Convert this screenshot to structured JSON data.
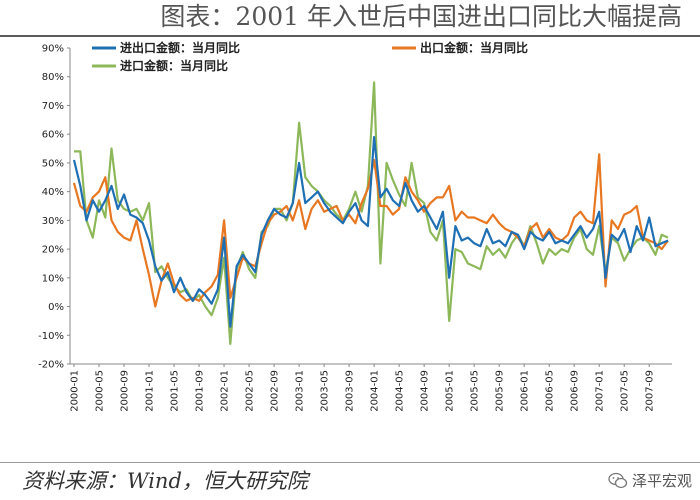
{
  "header": {
    "title": "图表：2001 年入世后中国进出口同比大幅提高"
  },
  "footer": {
    "source": "资料来源：Wind，恒大研究院",
    "watermark": "泽平宏观"
  },
  "colors": {
    "total": "#1f6fb4",
    "export": "#e87722",
    "import": "#8db85a"
  },
  "chart_data": {
    "type": "line",
    "ylim": [
      -0.2,
      0.9
    ],
    "yticks": [
      "-20%",
      "-10%",
      "0%",
      "10%",
      "20%",
      "30%",
      "40%",
      "50%",
      "60%",
      "70%",
      "80%",
      "90%"
    ],
    "xticks": [
      "2000-01",
      "2000-05",
      "2000-09",
      "2001-01",
      "2001-05",
      "2001-09",
      "2002-01",
      "2002-05",
      "2002-09",
      "2003-01",
      "2003-05",
      "2003-09",
      "2004-01",
      "2004-05",
      "2004-09",
      "2005-01",
      "2005-05",
      "2005-09",
      "2006-01",
      "2006-05",
      "2006-09",
      "2007-01",
      "2007-05",
      "2007-09"
    ],
    "x": [
      "2000-01",
      "2000-02",
      "2000-03",
      "2000-04",
      "2000-05",
      "2000-06",
      "2000-07",
      "2000-08",
      "2000-09",
      "2000-10",
      "2000-11",
      "2000-12",
      "2001-01",
      "2001-02",
      "2001-03",
      "2001-04",
      "2001-05",
      "2001-06",
      "2001-07",
      "2001-08",
      "2001-09",
      "2001-10",
      "2001-11",
      "2001-12",
      "2002-01",
      "2002-02",
      "2002-03",
      "2002-04",
      "2002-05",
      "2002-06",
      "2002-07",
      "2002-08",
      "2002-09",
      "2002-10",
      "2002-11",
      "2002-12",
      "2003-01",
      "2003-02",
      "2003-03",
      "2003-04",
      "2003-05",
      "2003-06",
      "2003-07",
      "2003-08",
      "2003-09",
      "2003-10",
      "2003-11",
      "2003-12",
      "2004-01",
      "2004-02",
      "2004-03",
      "2004-04",
      "2004-05",
      "2004-06",
      "2004-07",
      "2004-08",
      "2004-09",
      "2004-10",
      "2004-11",
      "2004-12",
      "2005-01",
      "2005-02",
      "2005-03",
      "2005-04",
      "2005-05",
      "2005-06",
      "2005-07",
      "2005-08",
      "2005-09",
      "2005-10",
      "2005-11",
      "2005-12",
      "2006-01",
      "2006-02",
      "2006-03",
      "2006-04",
      "2006-05",
      "2006-06",
      "2006-07",
      "2006-08",
      "2006-09",
      "2006-10",
      "2006-11",
      "2006-12",
      "2007-01",
      "2007-02",
      "2007-03",
      "2007-04",
      "2007-05",
      "2007-06",
      "2007-07",
      "2007-08",
      "2007-09",
      "2007-10",
      "2007-11",
      "2007-12"
    ],
    "series": [
      {
        "name": "进出口金额：当月同比",
        "color_key": "total",
        "values": [
          0.51,
          0.42,
          0.3,
          0.37,
          0.33,
          0.37,
          0.42,
          0.34,
          0.39,
          0.32,
          0.31,
          0.29,
          0.23,
          0.14,
          0.09,
          0.12,
          0.05,
          0.1,
          0.05,
          0.02,
          0.06,
          0.04,
          0.01,
          0.06,
          0.24,
          -0.07,
          0.14,
          0.18,
          0.15,
          0.12,
          0.25,
          0.3,
          0.34,
          0.32,
          0.31,
          0.36,
          0.5,
          0.36,
          0.38,
          0.4,
          0.36,
          0.33,
          0.31,
          0.29,
          0.33,
          0.36,
          0.3,
          0.28,
          0.59,
          0.38,
          0.41,
          0.37,
          0.35,
          0.43,
          0.37,
          0.33,
          0.35,
          0.31,
          0.27,
          0.33,
          0.1,
          0.28,
          0.23,
          0.24,
          0.22,
          0.21,
          0.27,
          0.22,
          0.23,
          0.21,
          0.26,
          0.25,
          0.2,
          0.26,
          0.24,
          0.23,
          0.26,
          0.22,
          0.23,
          0.22,
          0.25,
          0.28,
          0.24,
          0.27,
          0.33,
          0.1,
          0.25,
          0.23,
          0.27,
          0.19,
          0.28,
          0.23,
          0.31,
          0.21,
          0.22,
          0.23
        ]
      },
      {
        "name": "出口金额：当月同比",
        "color_key": "export",
        "values": [
          0.43,
          0.35,
          0.33,
          0.38,
          0.4,
          0.45,
          0.3,
          0.26,
          0.24,
          0.23,
          0.3,
          0.2,
          0.11,
          0.0,
          0.09,
          0.15,
          0.08,
          0.04,
          0.02,
          0.03,
          0.02,
          0.05,
          0.07,
          0.11,
          0.3,
          0.03,
          0.1,
          0.17,
          0.15,
          0.14,
          0.22,
          0.29,
          0.32,
          0.33,
          0.35,
          0.3,
          0.37,
          0.27,
          0.34,
          0.37,
          0.33,
          0.34,
          0.35,
          0.3,
          0.32,
          0.29,
          0.36,
          0.41,
          0.51,
          0.35,
          0.35,
          0.32,
          0.34,
          0.45,
          0.4,
          0.37,
          0.33,
          0.36,
          0.38,
          0.38,
          0.42,
          0.3,
          0.33,
          0.31,
          0.31,
          0.3,
          0.29,
          0.32,
          0.29,
          0.27,
          0.26,
          0.24,
          0.21,
          0.27,
          0.29,
          0.24,
          0.27,
          0.24,
          0.23,
          0.25,
          0.31,
          0.33,
          0.3,
          0.29,
          0.53,
          0.07,
          0.3,
          0.27,
          0.32,
          0.33,
          0.35,
          0.24,
          0.23,
          0.22,
          0.2,
          0.23
        ]
      },
      {
        "name": "进口金额：当月同比",
        "color_key": "import",
        "values": [
          0.54,
          0.54,
          0.3,
          0.24,
          0.37,
          0.31,
          0.55,
          0.37,
          0.34,
          0.33,
          0.34,
          0.3,
          0.36,
          0.12,
          0.14,
          0.1,
          0.07,
          0.05,
          0.06,
          0.02,
          0.04,
          0.0,
          -0.03,
          0.03,
          0.17,
          -0.13,
          0.13,
          0.19,
          0.13,
          0.1,
          0.26,
          0.28,
          0.34,
          0.34,
          0.3,
          0.36,
          0.64,
          0.45,
          0.42,
          0.4,
          0.37,
          0.35,
          0.32,
          0.3,
          0.34,
          0.4,
          0.33,
          0.42,
          0.78,
          0.15,
          0.5,
          0.44,
          0.39,
          0.35,
          0.5,
          0.38,
          0.36,
          0.26,
          0.23,
          0.3,
          -0.05,
          0.2,
          0.19,
          0.15,
          0.14,
          0.13,
          0.21,
          0.18,
          0.2,
          0.17,
          0.22,
          0.25,
          0.21,
          0.28,
          0.22,
          0.15,
          0.2,
          0.18,
          0.2,
          0.19,
          0.24,
          0.27,
          0.2,
          0.18,
          0.28,
          0.12,
          0.24,
          0.22,
          0.16,
          0.2,
          0.23,
          0.24,
          0.22,
          0.18,
          0.25,
          0.24
        ]
      }
    ]
  }
}
